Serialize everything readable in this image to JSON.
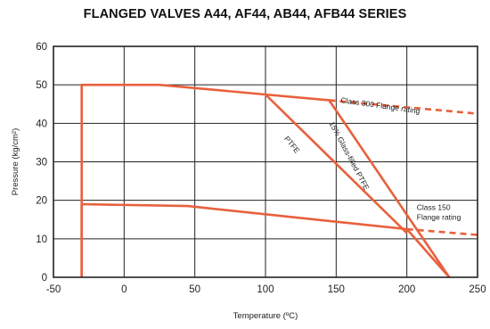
{
  "chart_data": {
    "type": "line",
    "title": "FLANGED VALVES A44, AF44, AB44, AFB44 SERIES",
    "xlabel": "Temperature (ºC)",
    "ylabel": "Pressure (kg/cm²)",
    "xlim": [
      -50,
      250
    ],
    "ylim": [
      0,
      60
    ],
    "x_ticks": [
      -50,
      0,
      50,
      100,
      150,
      200,
      250
    ],
    "x_tick_labels": [
      "-50",
      "0",
      "50",
      "100",
      "150",
      "200",
      "250"
    ],
    "y_ticks": [
      0,
      10,
      20,
      30,
      40,
      50,
      60
    ],
    "y_tick_labels": [
      "0",
      "10",
      "20",
      "30",
      "40",
      "50",
      "60"
    ],
    "grid": true,
    "colors": {
      "line": "#e8603c",
      "grid": "#222222",
      "frame": "#222222"
    },
    "series": [
      {
        "dashed": false,
        "points": [
          [
            -30,
            0
          ],
          [
            -30,
            50
          ],
          [
            25,
            50
          ],
          [
            100,
            47.5
          ],
          [
            145,
            46
          ],
          [
            230,
            0
          ]
        ]
      },
      {
        "dashed": false,
        "points": [
          [
            100,
            47.5
          ],
          [
            200,
            11.5
          ]
        ]
      },
      {
        "dashed": false,
        "points": [
          [
            -30,
            0
          ],
          [
            -30,
            19
          ],
          [
            45,
            18.5
          ],
          [
            200,
            12.5
          ],
          [
            230,
            0
          ]
        ]
      },
      {
        "dashed": true,
        "points": [
          [
            145,
            46
          ],
          [
            250,
            42.5
          ]
        ]
      },
      {
        "dashed": true,
        "points": [
          [
            200,
            12.5
          ],
          [
            250,
            11
          ]
        ]
      }
    ],
    "annotations": [
      {
        "text": "Class 300 Flange rating",
        "x": 153,
        "y": 45.4,
        "rotate": 8
      },
      {
        "text": "PTFE",
        "x": 113,
        "y": 36,
        "rotate": 51
      },
      {
        "text": "15% Glass-filled PTFE",
        "x": 145,
        "y": 40,
        "rotate": 62
      },
      {
        "text": "Class 150",
        "x": 207,
        "y": 17.5,
        "rotate": 0
      },
      {
        "text": "Flange rating",
        "x": 207,
        "y": 15,
        "rotate": 0
      }
    ]
  }
}
